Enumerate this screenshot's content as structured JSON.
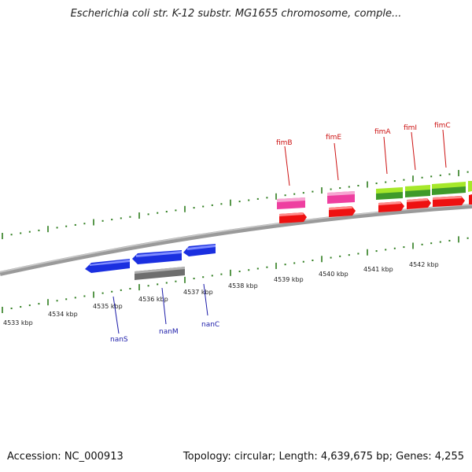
{
  "title": "Escherichia coli str. K-12 substr. MG1655 chromosome, comple...",
  "accession_text": "Accession: NC_000913",
  "topology_text": "Topology: circular; Length: 4,639,675 bp; Genes: 4,255",
  "colors": {
    "backbone": "#8a8a8a",
    "tick": "#2e7d1e",
    "forward_cds": "#ee1111",
    "forward_gene_pink": "#ee3fa0",
    "forward_gene_lime": "#a6e82a",
    "forward_gene_green": "#3f9a2a",
    "reverse_gene": "#1a2fe0",
    "reverse_gray": "#6e6e6e",
    "forward_label": "#cc1111",
    "reverse_label": "#1a1aa8"
  },
  "scale": {
    "upper_labels": [
      "4539 kbp",
      "4540 kbp",
      "4541 kbp",
      "4542 kbp"
    ],
    "lower_labels": [
      "4533 kbp",
      "4534 kbp",
      "4535 kbp",
      "4536 kbp",
      "4537 kbp",
      "4538 kbp"
    ]
  },
  "forward_genes": [
    {
      "name": "fimB",
      "color": "pink"
    },
    {
      "name": "fimE",
      "color": "pink"
    },
    {
      "name": "fimA",
      "color": "lime"
    },
    {
      "name": "fimI",
      "color": "lime"
    },
    {
      "name": "fimC",
      "color": "lime"
    }
  ],
  "reverse_genes": [
    {
      "name": "nanS"
    },
    {
      "name": "nanM"
    },
    {
      "name": "nanC"
    }
  ]
}
